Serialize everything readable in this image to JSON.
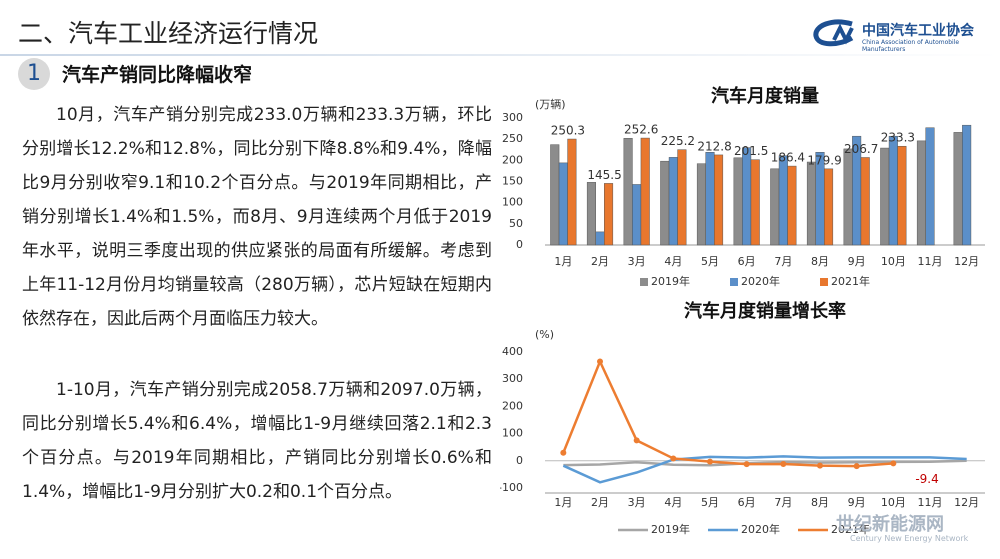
{
  "header": {
    "title": "二、汽车工业经济运行情况",
    "logo_cn": "中国汽车工业协会",
    "logo_en": "China Association of Automobile Manufacturers"
  },
  "section": {
    "number": "1",
    "title": "汽车产销同比降幅收窄"
  },
  "paragraphs": [
    "10月，汽车产销分别完成233.0万辆和233.3万辆，环比分别增长12.2%和12.8%，同比分别下降8.8%和9.4%，降幅比9月分别收窄9.1和10.2个百分点。与2019年同期相比，产销分别增长1.4%和1.5%，而8月、9月连续两个月低于2019年水平，说明三季度出现的供应紧张的局面有所缓解。考虑到上年11-12月份月均销量较高（280万辆），芯片短缺在短期内依然存在，因此后两个月面临压力较大。",
    "1-10月，汽车产销分别完成2058.7万辆和2097.0万辆，同比分别增长5.4%和6.4%，增幅比1-9月继续回落2.1和2.3个百分点。与2019年同期相比，产销同比分别增长0.6%和1.4%，增幅比1-9月分别扩大0.2和0.1个百分点。"
  ],
  "watermark": {
    "cn": "世纪新能源网",
    "en": "Century New Energy Network"
  },
  "chart_data": [
    {
      "type": "bar",
      "title": "汽车月度销量",
      "y_label": "(万辆)",
      "categories": [
        "1月",
        "2月",
        "3月",
        "4月",
        "5月",
        "6月",
        "7月",
        "8月",
        "9月",
        "10月",
        "11月",
        "12月"
      ],
      "series": [
        {
          "name": "2019年",
          "color": "#8c8c8c",
          "values": [
            237,
            148,
            252,
            198,
            192,
            206,
            180,
            196,
            227,
            229,
            246,
            266
          ]
        },
        {
          "name": "2020年",
          "color": "#5b8fc9",
          "values": [
            194,
            31,
            143,
            207,
            219,
            230,
            211,
            219,
            257,
            257,
            277,
            283
          ]
        },
        {
          "name": "2021年",
          "color": "#e8772e",
          "values": [
            250.3,
            145.5,
            252.6,
            225.2,
            212.8,
            201.5,
            186.4,
            179.9,
            206.7,
            233.3,
            null,
            null
          ],
          "labels": true
        }
      ],
      "ylim": [
        0,
        300
      ],
      "yticks": [
        0,
        50,
        100,
        150,
        200,
        250,
        300
      ],
      "grid": false,
      "legend": "bottom"
    },
    {
      "type": "line",
      "title": "汽车月度销量增长率",
      "y_label": "(%)",
      "categories": [
        "1月",
        "2月",
        "3月",
        "4月",
        "5月",
        "6月",
        "7月",
        "8月",
        "9月",
        "10月",
        "11月",
        "12月"
      ],
      "series": [
        {
          "name": "2019年",
          "color": "#a6a6a6",
          "values": [
            -15.8,
            -13.8,
            -5.2,
            -14.6,
            -16.4,
            -9.6,
            -4.3,
            -6.9,
            -5.2,
            -4,
            -3.6,
            0.1
          ]
        },
        {
          "name": "2020年",
          "color": "#5b9bd5",
          "values": [
            -18,
            -79,
            -43,
            4.4,
            14.5,
            11.6,
            16.4,
            11.6,
            12.8,
            12.5,
            12.6,
            6.4
          ]
        },
        {
          "name": "2021年",
          "color": "#ed7d31",
          "values": [
            29.5,
            365,
            74.9,
            8.6,
            -3.1,
            -12.4,
            -11.9,
            -17.8,
            -19.6,
            -9.4,
            null,
            null
          ],
          "label_index": 9
        }
      ],
      "ylim": [
        -100,
        400
      ],
      "yticks": [
        -100,
        0,
        100,
        200,
        300,
        400
      ],
      "grid": false,
      "legend": "bottom"
    }
  ]
}
